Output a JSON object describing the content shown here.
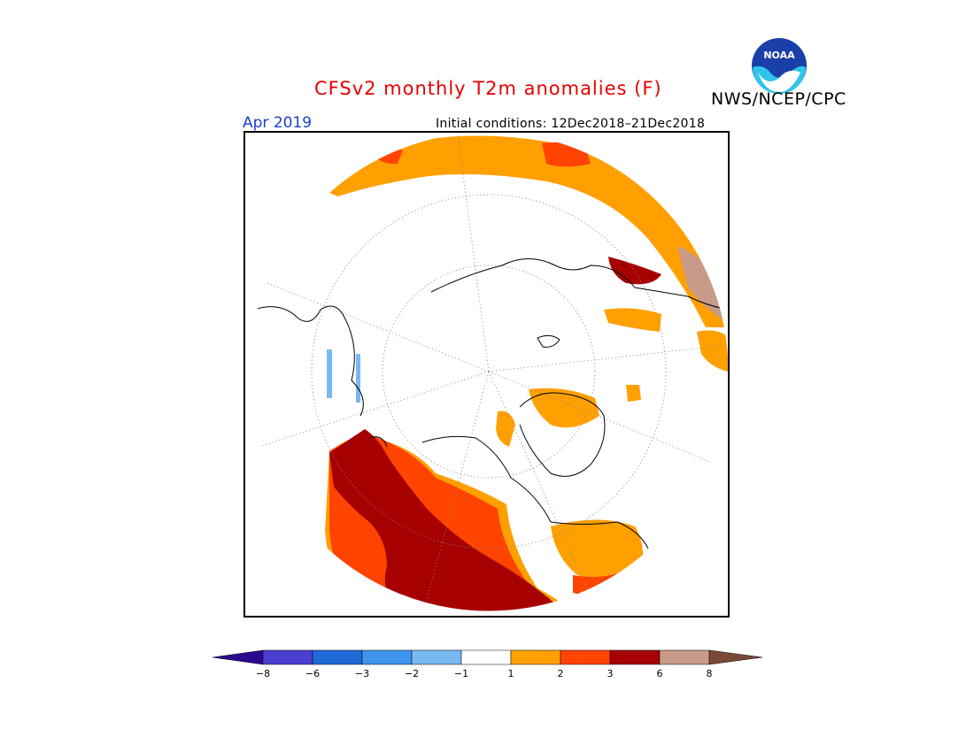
{
  "header": {
    "title": "CFSv2 monthly T2m anomalies (F)",
    "agency": "NWS/NCEP/CPC",
    "month": "Apr 2019",
    "initial_conditions": "Initial conditions: 12Dec2018–21Dec2018",
    "logo_text": "NOAA"
  },
  "legend": {
    "ticks": [
      "−8",
      "−6",
      "−3",
      "−2",
      "−1",
      "1",
      "2",
      "3",
      "6",
      "8"
    ],
    "colors": [
      "#2a0a8c",
      "#4a3fd0",
      "#1f6ad6",
      "#3f95ee",
      "#7ab8f2",
      "#ffffff",
      "#ffa000",
      "#ff4400",
      "#a60000",
      "#c79b88",
      "#7a4a38"
    ]
  }
}
